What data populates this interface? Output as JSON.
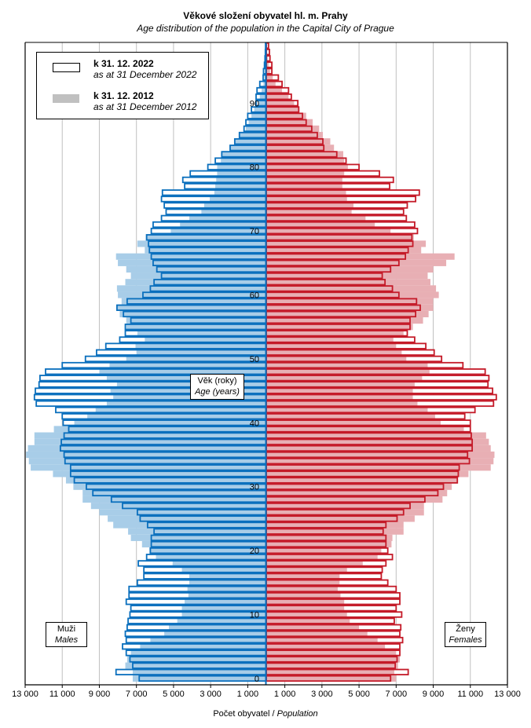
{
  "title": "Věkové složení obyvatel hl. m. Prahy",
  "subtitle": "Age distribution of the population  in the Capital City of Prague",
  "legend": [
    {
      "label": "k 31. 12. 2022",
      "label_en": "as at 31 December 2022"
    },
    {
      "label": "k 31. 12. 2012",
      "label_en": "as at 31 December 2012"
    }
  ],
  "age_axis_box": {
    "label": "Věk (roky)",
    "label_en": "Age (years)"
  },
  "males_box": {
    "label": "Muži",
    "label_en": "Males"
  },
  "females_box": {
    "label": "Ženy",
    "label_en": "Females"
  },
  "colors": {
    "male_line": "#0a6fbd",
    "male_fill": "#a8cde8",
    "female_line": "#c41a28",
    "female_fill": "#e8afb4",
    "grid": "#c0c0c0"
  },
  "chart_data": {
    "type": "bar",
    "orientation": "population-pyramid",
    "xlabel": "Počet obyvatel",
    "xlabel_en": "Population",
    "xlim": [
      -13000,
      13000
    ],
    "x_tick_labels": [
      "13 000",
      "11 000",
      "9 000",
      "7 000",
      "5 000",
      "3 000",
      "1 000",
      "1 000",
      "3 000",
      "5 000",
      "7 000",
      "9 000",
      "11 000",
      "13 000"
    ],
    "x_tick_values": [
      -13000,
      -11000,
      -9000,
      -7000,
      -5000,
      -3000,
      -1000,
      1000,
      3000,
      5000,
      7000,
      9000,
      11000,
      13000
    ],
    "y_tick_labels": [
      "0",
      "10",
      "20",
      "30",
      "40",
      "50",
      "60",
      "70",
      "80",
      "90"
    ],
    "y_tick_values": [
      0,
      10,
      20,
      30,
      40,
      50,
      60,
      70,
      80,
      90
    ],
    "age_min": 0,
    "age_max": 99,
    "series": [
      {
        "name": "Muži 2022",
        "year": 2022,
        "sex": "male",
        "values": [
          6850,
          8100,
          7200,
          7350,
          7550,
          7750,
          7550,
          7600,
          7500,
          7450,
          7350,
          7300,
          7550,
          7400,
          7400,
          6950,
          6600,
          6600,
          6900,
          6450,
          6250,
          6200,
          6200,
          6050,
          6400,
          6800,
          6950,
          7750,
          8350,
          9350,
          9700,
          10350,
          10550,
          10550,
          10850,
          10900,
          11100,
          11050,
          10900,
          10650,
          10950,
          11000,
          11350,
          12400,
          12500,
          12450,
          12250,
          12200,
          11900,
          11000,
          9750,
          9150,
          8650,
          7900,
          7600,
          7600,
          7300,
          7700,
          8050,
          7500,
          6650,
          6250,
          6050,
          5650,
          5900,
          6100,
          6200,
          6300,
          6350,
          6450,
          6200,
          6100,
          5650,
          5400,
          5500,
          5650,
          5600,
          4400,
          4500,
          4100,
          3150,
          2750,
          2400,
          1950,
          1700,
          1450,
          1200,
          1100,
          1000,
          800,
          550,
          550,
          500,
          350,
          170,
          150,
          100,
          70,
          50,
          40
        ]
      },
      {
        "name": "Muži 2012",
        "year": 2012,
        "sex": "male",
        "values": [
          7200,
          7200,
          7600,
          7500,
          7300,
          6800,
          6250,
          5500,
          5250,
          4800,
          4550,
          4550,
          4400,
          4200,
          4250,
          4150,
          4150,
          4550,
          5050,
          5950,
          6300,
          6700,
          7300,
          7450,
          8250,
          8550,
          9000,
          9450,
          9900,
          9900,
          10400,
          10800,
          11500,
          12700,
          12800,
          12950,
          12850,
          12500,
          12500,
          11450,
          10350,
          9650,
          9200,
          8600,
          8250,
          8400,
          8050,
          8600,
          9000,
          8450,
          7550,
          7000,
          7050,
          6550,
          6950,
          7550,
          7550,
          7900,
          8050,
          7800,
          8000,
          8050,
          7600,
          7300,
          7550,
          8000,
          8100,
          6550,
          6950,
          6500,
          5150,
          4650,
          4150,
          3500,
          3350,
          3050,
          2800,
          2750,
          2700,
          2650,
          2650,
          2450,
          2400,
          1950,
          1700,
          1450,
          1100,
          950,
          800,
          650,
          450,
          350,
          250,
          150,
          100,
          70,
          50,
          40,
          30,
          20
        ]
      },
      {
        "name": "Ženy 2022",
        "year": 2022,
        "sex": "female",
        "values": [
          6700,
          7650,
          6950,
          7050,
          7200,
          7200,
          7350,
          7200,
          7250,
          6900,
          7300,
          7000,
          7200,
          7200,
          7000,
          6550,
          6200,
          6250,
          6450,
          6800,
          6550,
          6450,
          6450,
          6300,
          6450,
          7050,
          7400,
          7750,
          8550,
          9250,
          9550,
          10300,
          10350,
          10400,
          10950,
          10850,
          11100,
          11100,
          11050,
          11000,
          11000,
          10700,
          11250,
          12250,
          12400,
          12200,
          11950,
          12000,
          11800,
          10600,
          9450,
          9050,
          8600,
          8000,
          7600,
          7750,
          7750,
          8050,
          8300,
          8100,
          7150,
          6800,
          6400,
          6250,
          6700,
          7150,
          7500,
          7650,
          7900,
          7850,
          8150,
          8000,
          7550,
          7400,
          7600,
          8050,
          8250,
          6650,
          6850,
          6100,
          5000,
          4300,
          3800,
          3100,
          3050,
          2750,
          2450,
          2150,
          1950,
          1750,
          1700,
          1350,
          1200,
          850,
          650,
          300,
          300,
          200,
          170,
          120
        ]
      },
      {
        "name": "Ženy 2012",
        "year": 2012,
        "sex": "female",
        "values": [
          7000,
          6900,
          7100,
          7200,
          7000,
          6400,
          6000,
          5450,
          5000,
          4500,
          4350,
          4200,
          4200,
          4000,
          3850,
          3950,
          3950,
          4350,
          5200,
          6000,
          6200,
          6750,
          6800,
          7400,
          7400,
          8000,
          8500,
          8500,
          9500,
          9750,
          10000,
          10300,
          10900,
          12100,
          12250,
          12300,
          12100,
          12000,
          11850,
          10650,
          9400,
          9100,
          8700,
          8150,
          7900,
          7900,
          8000,
          8400,
          8800,
          8700,
          7550,
          7300,
          7000,
          6850,
          7400,
          7900,
          8450,
          8750,
          9000,
          9000,
          9300,
          9150,
          8850,
          8700,
          9000,
          9700,
          10150,
          8350,
          8600,
          7950,
          6700,
          5850,
          5350,
          4600,
          4700,
          4350,
          4300,
          4100,
          4100,
          4200,
          4400,
          4200,
          4150,
          3650,
          3450,
          3050,
          2850,
          2500,
          2150,
          1750,
          1500,
          1200,
          850,
          500,
          350,
          200,
          120,
          80,
          50,
          30
        ]
      }
    ]
  }
}
